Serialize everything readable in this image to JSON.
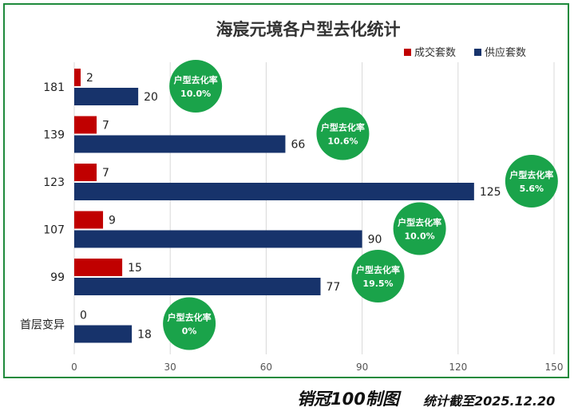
{
  "chart_data": {
    "type": "bar",
    "orientation": "horizontal",
    "title": "海宸元境各户型去化统计",
    "categories": [
      "181",
      "139",
      "123",
      "107",
      "99",
      "首层变异"
    ],
    "series": [
      {
        "name": "成交套数",
        "values": [
          2,
          7,
          7,
          9,
          15,
          0
        ],
        "color": "#c00000"
      },
      {
        "name": "供应套数",
        "values": [
          20,
          66,
          125,
          90,
          77,
          18
        ],
        "color": "#17336b"
      }
    ],
    "badge_label": "户型去化率",
    "badge_values": [
      "10.0%",
      "10.6%",
      "5.6%",
      "10.0%",
      "19.5%",
      "0%"
    ],
    "badge_color": "#1aa34a",
    "xlim": [
      0,
      150
    ],
    "xticks": [
      "0",
      "30",
      "60",
      "90",
      "120",
      "150"
    ],
    "grid": true,
    "legend_position": "top-right"
  },
  "footer": {
    "brand": "销冠100制图",
    "date": "统计截至2025.12.20"
  }
}
